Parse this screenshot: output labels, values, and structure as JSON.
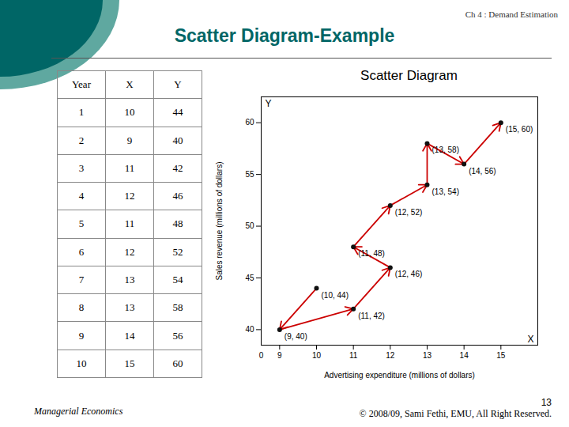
{
  "chart_data": {
    "type": "scatter",
    "title": "Scatter Diagram-Example",
    "chapter": "Ch 4 : Demand Estimation",
    "plot_title": "Scatter Diagram",
    "xlabel": "Advertising expenditure (millions of dollars)",
    "ylabel": "Sales revenue (millions of dollars)",
    "footer_left": "Managerial Economics",
    "footer_number": "13",
    "footer_right": "© 2008/09, Sami Fethi, EMU, All Right Reserved.",
    "table": {
      "headers": [
        "Year",
        "X",
        "Y"
      ],
      "rows": [
        [
          1,
          10,
          44
        ],
        [
          2,
          9,
          40
        ],
        [
          3,
          11,
          42
        ],
        [
          4,
          12,
          46
        ],
        [
          5,
          11,
          48
        ],
        [
          6,
          12,
          52
        ],
        [
          7,
          13,
          54
        ],
        [
          8,
          13,
          58
        ],
        [
          9,
          14,
          56
        ],
        [
          10,
          15,
          60
        ]
      ]
    },
    "x": [
      10,
      9,
      11,
      12,
      11,
      12,
      13,
      13,
      14,
      15
    ],
    "values": [
      44,
      40,
      42,
      46,
      48,
      52,
      54,
      58,
      56,
      60
    ],
    "value_labels": [
      "(10, 44)",
      "(9, 40)",
      "(11, 42)",
      "(12, 46)",
      "(11, 48)",
      "(12, 52)",
      "(13, 54)",
      "(13, 58)",
      "(14, 56)",
      "(15, 60)"
    ],
    "data_labels": true,
    "color": "#111111",
    "arrows": {
      "color": "#cc0000",
      "x": [
        10,
        9,
        11,
        12,
        11,
        12,
        13,
        13,
        14,
        15
      ],
      "y": [
        44,
        40,
        42,
        46,
        48,
        52,
        54,
        58,
        56,
        60
      ]
    },
    "axis_marks": {
      "y": "Y",
      "x": "X",
      "origin": "0"
    },
    "decoration_colors": [
      "#006666",
      "#5fa8a0"
    ],
    "xlim": [
      8.5,
      16
    ],
    "ylim": [
      38.5,
      62.5
    ],
    "xticks": [
      9,
      10,
      11,
      12,
      13,
      14,
      15
    ],
    "yticks": [
      40,
      45,
      50,
      55,
      60
    ],
    "grid": false
  }
}
